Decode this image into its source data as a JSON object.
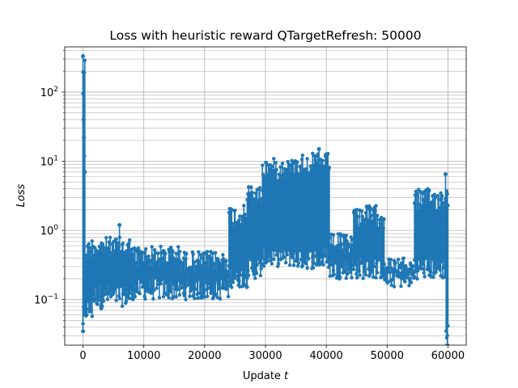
{
  "chart_data": {
    "type": "line",
    "title": "Loss with heuristic reward QTargetRefresh: 50000",
    "xlabel": {
      "text": "Update ",
      "var": "t"
    },
    "ylabel": "Loss",
    "xlim": [
      -3000,
      63000
    ],
    "ylim": [
      0.022,
      450
    ],
    "yscale": "log",
    "grid": true,
    "marker": "circle",
    "line_color": "#1f77b4",
    "x_ticks": [
      {
        "value": 0,
        "label": "0"
      },
      {
        "value": 10000,
        "label": "10000"
      },
      {
        "value": 20000,
        "label": "20000"
      },
      {
        "value": 30000,
        "label": "30000"
      },
      {
        "value": 40000,
        "label": "40000"
      },
      {
        "value": 50000,
        "label": "50000"
      },
      {
        "value": 60000,
        "label": "60000"
      }
    ],
    "y_ticks": [
      {
        "value": 0.1,
        "base": "10",
        "exp": "−1"
      },
      {
        "value": 1,
        "base": "10",
        "exp": "0"
      },
      {
        "value": 10,
        "base": "10",
        "exp": "1"
      },
      {
        "value": 100,
        "base": "10",
        "exp": "2"
      }
    ],
    "bands": [
      {
        "x": [
          0,
          300
        ],
        "low": 0.035,
        "high": 330
      },
      {
        "x": [
          300,
          1500
        ],
        "low": 0.05,
        "high": 0.7
      },
      {
        "x": [
          1500,
          8000
        ],
        "low": 0.08,
        "high": 0.8
      },
      {
        "x": [
          8000,
          16000
        ],
        "low": 0.1,
        "high": 0.6
      },
      {
        "x": [
          16000,
          24000
        ],
        "low": 0.1,
        "high": 0.5
      },
      {
        "x": [
          24000,
          27000
        ],
        "low": 0.15,
        "high": 2.3
      },
      {
        "x": [
          27000,
          29500
        ],
        "low": 0.2,
        "high": 4.5
      },
      {
        "x": [
          29500,
          35000
        ],
        "low": 0.3,
        "high": 11
      },
      {
        "x": [
          35000,
          40500
        ],
        "low": 0.28,
        "high": 13
      },
      {
        "x": [
          40500,
          44500
        ],
        "low": 0.2,
        "high": 0.9
      },
      {
        "x": [
          44500,
          49500
        ],
        "low": 0.2,
        "high": 2.3
      },
      {
        "x": [
          49500,
          54500
        ],
        "low": 0.15,
        "high": 0.4
      },
      {
        "x": [
          54500,
          59700
        ],
        "low": 0.2,
        "high": 4
      },
      {
        "x": [
          59700,
          60000
        ],
        "low": 0.022,
        "high": 5
      }
    ],
    "peaks": [
      {
        "x": 0,
        "y": 330
      },
      {
        "x": 50,
        "y": 95
      },
      {
        "x": 100,
        "y": 40
      },
      {
        "x": 150,
        "y": 22
      },
      {
        "x": 200,
        "y": 12
      },
      {
        "x": 300,
        "y": 7
      },
      {
        "x": 6000,
        "y": 1.2
      },
      {
        "x": 38800,
        "y": 15
      },
      {
        "x": 59600,
        "y": 6.5
      }
    ],
    "lows": [
      {
        "x": 0,
        "y": 0.035
      },
      {
        "x": 3000,
        "y": 0.075
      },
      {
        "x": 59900,
        "y": 0.022
      }
    ]
  }
}
